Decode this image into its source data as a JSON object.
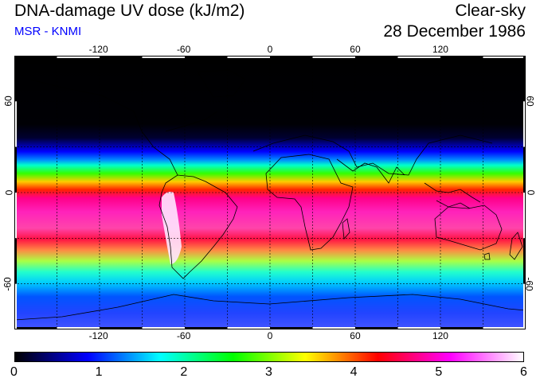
{
  "header": {
    "title": "DNA-damage UV dose (kJ/m2)",
    "source": "MSR - KNMI",
    "condition": "Clear-sky",
    "date": "28 December 1986"
  },
  "axes": {
    "lon_labels": [
      "-120",
      "-60",
      "0",
      "60",
      "120"
    ],
    "lon_values": [
      -120,
      -60,
      0,
      60,
      120
    ],
    "lat_labels": [
      "60",
      "0",
      "-60"
    ],
    "lat_values": [
      60,
      0,
      -60
    ],
    "lon_range": [
      -180,
      180
    ],
    "lat_range": [
      90,
      -90
    ]
  },
  "colorbar": {
    "labels": [
      "0",
      "1",
      "2",
      "3",
      "4",
      "5",
      "6"
    ],
    "min": 0,
    "max": 6,
    "colors": [
      "#000000",
      "#0000ff",
      "#00ffff",
      "#00ff00",
      "#ffff00",
      "#ff0000",
      "#ff00ff",
      "#ffffff"
    ]
  },
  "colors": {
    "grid": "#000000",
    "source_text": "#0000ff"
  }
}
